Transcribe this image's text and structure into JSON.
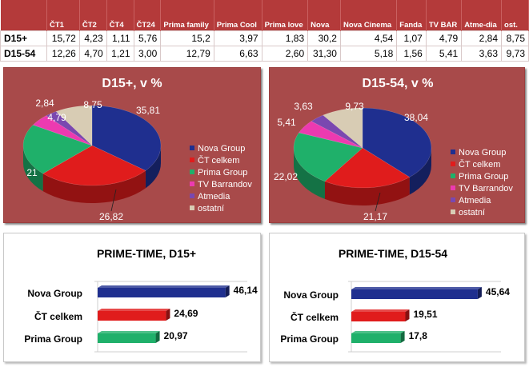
{
  "table": {
    "header_blank": "",
    "columns": [
      "ČT1",
      "ČT2",
      "ČT4",
      "ČT24",
      "Prima family",
      "Prima Cool",
      "Prima love",
      "Nova",
      "Nova Cinema",
      "Fanda",
      "TV BAR",
      "Atme-dia",
      "ost."
    ],
    "rows": [
      {
        "label": "D15+",
        "values": [
          "15,72",
          "4,23",
          "1,11",
          "5,76",
          "15,2",
          "3,97",
          "1,83",
          "30,2",
          "4,54",
          "1,07",
          "4,79",
          "2,84",
          "8,75"
        ]
      },
      {
        "label": "D15-54",
        "values": [
          "12,26",
          "4,70",
          "1,21",
          "3,00",
          "12,79",
          "6,63",
          "2,60",
          "31,30",
          "5,18",
          "1,56",
          "5,41",
          "3,63",
          "9,73"
        ]
      }
    ]
  },
  "colors": {
    "nova": "#1f2f8f",
    "ct": "#e01c1c",
    "prima": "#1fb06a",
    "barrandov": "#ec3ab0",
    "atmedia": "#7a48b0",
    "ostatni": "#d8ccb4",
    "panel_bg": "#a84a4a",
    "header_bg": "#b43a3a"
  },
  "chart_data": [
    {
      "type": "pie",
      "title": "D15+, v %",
      "categories": [
        "Nova Group",
        "ČT celkem",
        "Prima Group",
        "TV Barrandov",
        "Atmedia",
        "ostatní"
      ],
      "values": [
        35.81,
        26.82,
        21,
        4.79,
        2.84,
        8.75
      ],
      "labels": [
        "35,81",
        "26,82",
        "21",
        "4,79",
        "2,84",
        "8,75"
      ],
      "legend": "right"
    },
    {
      "type": "pie",
      "title": "D15-54, v %",
      "categories": [
        "Nova Group",
        "ČT celkem",
        "Prima Group",
        "TV Barrandov",
        "Atmedia",
        "ostatní"
      ],
      "values": [
        38.04,
        21.17,
        22.02,
        5.41,
        3.63,
        9.73
      ],
      "labels": [
        "38,04",
        "21,17",
        "22,02",
        "5,41",
        "3,63",
        "9,73"
      ],
      "legend": "right"
    },
    {
      "type": "bar",
      "orientation": "horizontal",
      "title": "PRIME-TIME, D15+",
      "categories": [
        "Nova Group",
        "ČT celkem",
        "Prima Group"
      ],
      "values": [
        46.14,
        24.69,
        20.97
      ],
      "labels": [
        "46,14",
        "24,69",
        "20,97"
      ],
      "grid": true
    },
    {
      "type": "bar",
      "orientation": "horizontal",
      "title": "PRIME-TIME, D15-54",
      "categories": [
        "Nova Group",
        "ČT celkem",
        "Prima Group"
      ],
      "values": [
        45.64,
        19.51,
        17.8
      ],
      "labels": [
        "45,64",
        "19,51",
        "17,8"
      ],
      "grid": true
    }
  ]
}
